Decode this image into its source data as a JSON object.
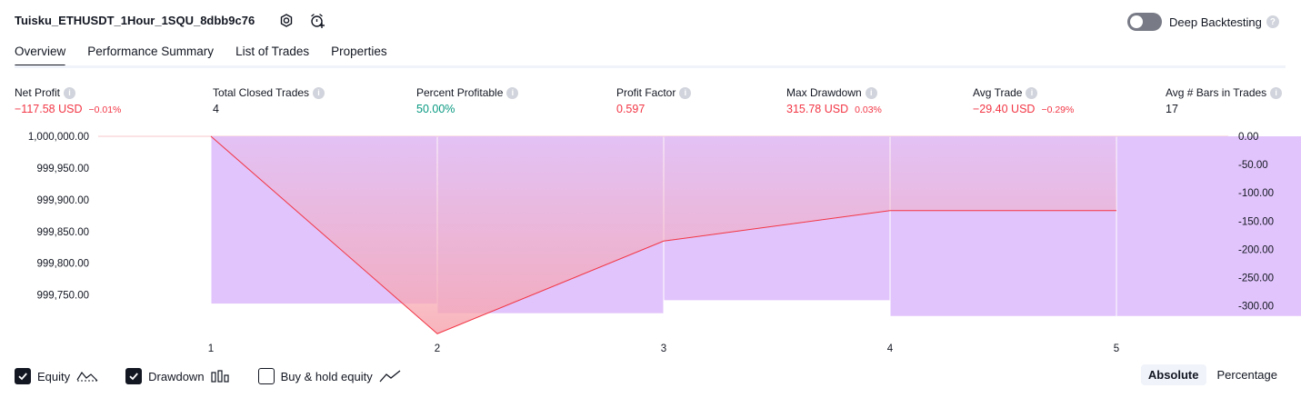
{
  "header": {
    "strategy_name": "Tuisku_ETHUSDT_1Hour_1SQU_8dbb9c76",
    "deep_backtesting_label": "Deep Backtesting",
    "deep_backtesting_enabled": false
  },
  "tabs": [
    {
      "label": "Overview",
      "active": true
    },
    {
      "label": "Performance Summary",
      "active": false
    },
    {
      "label": "List of Trades",
      "active": false
    },
    {
      "label": "Properties",
      "active": false
    }
  ],
  "metrics": [
    {
      "label": "Net Profit",
      "value": "−117.58 USD",
      "sub": "−0.01%",
      "tone": "neg"
    },
    {
      "label": "Total Closed Trades",
      "value": "4",
      "sub": "",
      "tone": "neu"
    },
    {
      "label": "Percent Profitable",
      "value": "50.00%",
      "sub": "",
      "tone": "pos"
    },
    {
      "label": "Profit Factor",
      "value": "0.597",
      "sub": "",
      "tone": "neg"
    },
    {
      "label": "Max Drawdown",
      "value": "315.78 USD",
      "sub": "0.03%",
      "tone": "neg"
    },
    {
      "label": "Avg Trade",
      "value": "−29.40 USD",
      "sub": "−0.29%",
      "tone": "neg"
    },
    {
      "label": "Avg # Bars in Trades",
      "value": "17",
      "sub": "",
      "tone": "neu"
    }
  ],
  "chart_data": {
    "type": "line",
    "x_ticks": [
      "1",
      "2",
      "3",
      "4",
      "5"
    ],
    "left_axis": {
      "ticks": [
        "1,000,000.00",
        "999,950.00",
        "999,900.00",
        "999,850.00",
        "999,800.00",
        "999,750.00"
      ],
      "range": [
        999708,
        1000000
      ]
    },
    "right_axis": {
      "ticks": [
        "0.00",
        "-50.00",
        "-100.00",
        "-150.00",
        "-200.00",
        "-250.00",
        "-300.00"
      ],
      "range": [
        -328,
        0
      ]
    },
    "series": [
      {
        "name": "Equity",
        "kind": "line",
        "axis": "left",
        "color": "#f23645",
        "x": [
          1,
          2,
          3,
          4,
          5
        ],
        "values": [
          1000000,
          999689,
          999835,
          999883,
          999883
        ]
      },
      {
        "name": "Drawdown",
        "kind": "bar",
        "axis": "right",
        "color": "#e1c4fb",
        "x": [
          1.5,
          2.5,
          3.5,
          4.5,
          5.5
        ],
        "values": [
          -296,
          -313,
          -290,
          -318,
          -318
        ]
      }
    ],
    "colors": {
      "equity": "#f23645",
      "equity_fill": "#f7a6b0",
      "drawdown": "#e1c4fb"
    }
  },
  "legend": [
    {
      "label": "Equity",
      "checked": true,
      "icon": "equity-line-icon"
    },
    {
      "label": "Drawdown",
      "checked": true,
      "icon": "drawdown-bars-icon"
    },
    {
      "label": "Buy & hold equity",
      "checked": false,
      "icon": "buy-hold-line-icon"
    }
  ],
  "mode_buttons": [
    {
      "label": "Absolute",
      "active": true
    },
    {
      "label": "Percentage",
      "active": false
    }
  ]
}
